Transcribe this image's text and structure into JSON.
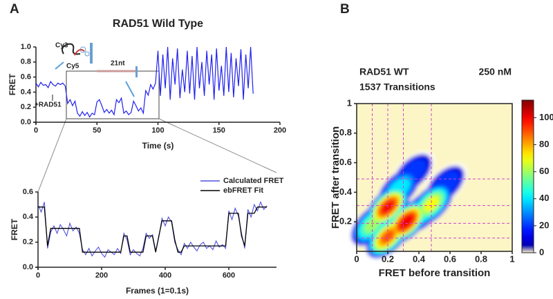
{
  "chart_data": [
    {
      "type": "line",
      "panel": "A",
      "title": "RAD51 Wild Type",
      "xlabel": "Time (s)",
      "ylabel": "FRET",
      "annotations": [
        "Cy3",
        "Cy5",
        "21nt",
        "+RAD51"
      ],
      "color": "#2020ee",
      "x": [
        0,
        2,
        4,
        6,
        8,
        10,
        12,
        14,
        16,
        18,
        20,
        22,
        24,
        26,
        28,
        30,
        32,
        34,
        36,
        38,
        40,
        42,
        44,
        46,
        48,
        50,
        52,
        54,
        56,
        58,
        60,
        62,
        64,
        66,
        68,
        70,
        72,
        74,
        76,
        78,
        80,
        82,
        84,
        86,
        88,
        90,
        92,
        94,
        96,
        98,
        100,
        102,
        104,
        106,
        108,
        110,
        112,
        114,
        116,
        118,
        120,
        122,
        124,
        126,
        128,
        130,
        132,
        134,
        136,
        138,
        140,
        142,
        144,
        146,
        148,
        150,
        152,
        154,
        156,
        158,
        160,
        162,
        164,
        166,
        168,
        170,
        172,
        174,
        176,
        178
      ],
      "values": [
        0.52,
        0.47,
        0.53,
        0.49,
        0.5,
        0.46,
        0.54,
        0.5,
        0.48,
        0.52,
        0.5,
        0.52,
        0.48,
        0.25,
        0.3,
        0.22,
        0.28,
        0.12,
        0.08,
        0.14,
        0.09,
        0.13,
        0.07,
        0.12,
        0.1,
        0.27,
        0.3,
        0.22,
        0.13,
        0.17,
        0.12,
        0.16,
        0.1,
        0.3,
        0.26,
        0.32,
        0.12,
        0.15,
        0.1,
        0.13,
        0.28,
        0.22,
        0.15,
        0.19,
        0.12,
        0.42,
        0.36,
        0.5,
        0.44,
        0.52,
        0.95,
        0.35,
        0.9,
        0.45,
        1.0,
        0.3,
        0.85,
        0.5,
        0.98,
        0.32,
        0.7,
        0.4,
        0.95,
        0.38,
        0.88,
        0.3,
        1.0,
        0.45,
        0.8,
        0.35,
        0.95,
        0.5,
        0.9,
        0.3,
        0.98,
        0.42,
        0.75,
        0.35,
        1.0,
        0.4,
        0.92,
        0.33,
        0.85,
        0.48,
        0.97,
        0.3,
        0.9,
        0.45,
        1.0,
        0.38
      ],
      "xlim": [
        0,
        200
      ],
      "xticks": [
        0,
        50,
        100,
        150,
        200
      ],
      "ylim": [
        0,
        1
      ],
      "yticks": [
        {
          "value": 0,
          "label": "0.0"
        },
        0.2,
        0.4,
        0.6,
        0.8,
        {
          "value": 1,
          "label": "1.0"
        }
      ]
    },
    {
      "type": "line",
      "xlabel": "Frames (1=0.1s)",
      "ylabel": "FRET",
      "legend": "upper right",
      "x": [
        0,
        10,
        20,
        30,
        40,
        50,
        60,
        70,
        80,
        90,
        100,
        110,
        120,
        130,
        140,
        150,
        160,
        170,
        180,
        190,
        200,
        210,
        220,
        230,
        240,
        250,
        260,
        270,
        280,
        290,
        300,
        310,
        320,
        330,
        340,
        350,
        360,
        370,
        380,
        390,
        400,
        410,
        420,
        430,
        440,
        450,
        460,
        470,
        480,
        490,
        500,
        510,
        520,
        530,
        540,
        550,
        560,
        570,
        580,
        590,
        600,
        610,
        620,
        630,
        640,
        650,
        660,
        670,
        680,
        690,
        700,
        710,
        720
      ],
      "series": [
        {
          "name": "Calculated FRET",
          "color": "#5050e0",
          "values": [
            0.5,
            0.44,
            0.52,
            0.15,
            0.28,
            0.33,
            0.27,
            0.34,
            0.3,
            0.25,
            0.35,
            0.29,
            0.32,
            0.27,
            0.14,
            0.1,
            0.15,
            0.09,
            0.13,
            0.16,
            0.11,
            0.08,
            0.14,
            0.12,
            0.1,
            0.15,
            0.11,
            0.27,
            0.22,
            0.1,
            0.14,
            0.11,
            0.09,
            0.15,
            0.27,
            0.23,
            0.26,
            0.13,
            0.24,
            0.39,
            0.33,
            0.4,
            0.36,
            0.2,
            0.14,
            0.1,
            0.19,
            0.15,
            0.2,
            0.16,
            0.13,
            0.18,
            0.2,
            0.15,
            0.17,
            0.14,
            0.21,
            0.16,
            0.18,
            0.15,
            0.45,
            0.38,
            0.47,
            0.41,
            0.27,
            0.15,
            0.46,
            0.4,
            0.5,
            0.45,
            0.52,
            0.46,
            0.49
          ]
        },
        {
          "name": "ebFRET Fit",
          "color": "#000000",
          "values": [
            0.48,
            0.48,
            0.48,
            0.17,
            0.31,
            0.31,
            0.31,
            0.31,
            0.31,
            0.31,
            0.31,
            0.31,
            0.31,
            0.31,
            0.12,
            0.12,
            0.12,
            0.12,
            0.12,
            0.12,
            0.12,
            0.12,
            0.12,
            0.12,
            0.12,
            0.12,
            0.12,
            0.25,
            0.25,
            0.12,
            0.12,
            0.12,
            0.12,
            0.12,
            0.25,
            0.25,
            0.25,
            0.12,
            0.25,
            0.37,
            0.37,
            0.37,
            0.37,
            0.22,
            0.12,
            0.12,
            0.17,
            0.17,
            0.17,
            0.17,
            0.17,
            0.17,
            0.17,
            0.17,
            0.17,
            0.17,
            0.17,
            0.17,
            0.17,
            0.17,
            0.43,
            0.43,
            0.43,
            0.43,
            0.25,
            0.17,
            0.43,
            0.43,
            0.43,
            0.48,
            0.48,
            0.48,
            0.48
          ]
        }
      ],
      "xlim": [
        0,
        750
      ],
      "xticks": [
        0,
        200,
        400,
        600
      ],
      "ylim": [
        0,
        0.6
      ],
      "yticks": [
        {
          "value": 0,
          "label": "0.0"
        },
        0.2,
        0.4,
        0.6
      ]
    },
    {
      "type": "density",
      "panel": "B",
      "xlabel": "FRET before transition",
      "ylabel": "FRET after transition",
      "annotations": [
        "RAD51 WT",
        "250 nM",
        "1537 Transitions"
      ],
      "x": [
        0.2,
        0.1,
        0.2,
        0.32,
        0.48,
        0.36,
        0.57,
        0.42,
        0.27
      ],
      "y": [
        0.3,
        0.18,
        0.1,
        0.2,
        0.32,
        0.53,
        0.45,
        0.27,
        0.42
      ],
      "values": [
        100,
        60,
        90,
        105,
        70,
        25,
        25,
        55,
        45
      ],
      "colormap": "jet",
      "background_color": "#fcf6c6",
      "zlim": [
        0,
        113
      ],
      "zticks": [
        0,
        20,
        40,
        60,
        80,
        100
      ],
      "lines_x": [
        0.1,
        0.2,
        0.3,
        0.48
      ],
      "lines_y": [
        0.09,
        0.19,
        0.31,
        0.49
      ],
      "line_color": "#d040d0",
      "xlim": [
        0,
        1
      ],
      "xticks": [
        0,
        0.2,
        0.4,
        0.6,
        0.8,
        1
      ],
      "ylim": [
        0,
        1
      ],
      "yticks": [
        0.2,
        0.4,
        0.6,
        0.8,
        1
      ]
    }
  ]
}
